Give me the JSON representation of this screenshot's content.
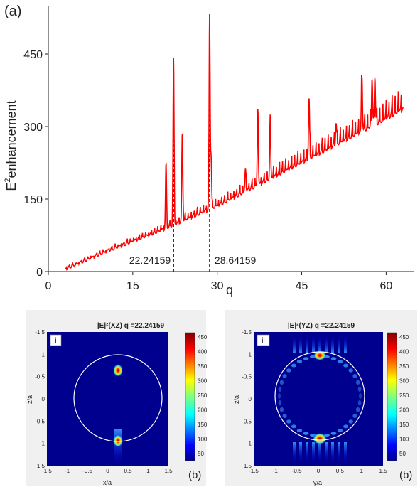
{
  "panel_label": "(a)",
  "chart_data": [
    {
      "type": "line",
      "title": "",
      "xlabel": "q",
      "ylabel_base": "E",
      "ylabel_sup": "2",
      "ylabel_rest": "enhancement",
      "xlim": [
        0,
        65
      ],
      "ylim": [
        0,
        550
      ],
      "x_ticks": [
        0,
        15,
        30,
        45,
        60
      ],
      "y_ticks": [
        0,
        150,
        300,
        450
      ],
      "series": [
        {
          "color": "#ff0000",
          "baseline_x": [
            3,
            10,
            20,
            30,
            40,
            50,
            60,
            63
          ],
          "baseline_y": [
            5,
            40,
            85,
            135,
            195,
            255,
            315,
            335
          ],
          "peaks": [
            {
              "q": 20.9,
              "value": 220
            },
            {
              "q": 22.24159,
              "value": 440
            },
            {
              "q": 23.8,
              "value": 285
            },
            {
              "q": 28.64159,
              "value": 515
            },
            {
              "q": 28.9,
              "value": 240
            },
            {
              "q": 35.0,
              "value": 210
            },
            {
              "q": 37.2,
              "value": 330
            },
            {
              "q": 39.4,
              "value": 310
            },
            {
              "q": 46.3,
              "value": 355
            },
            {
              "q": 51.1,
              "value": 305
            },
            {
              "q": 55.7,
              "value": 405
            },
            {
              "q": 57.5,
              "value": 395
            },
            {
              "q": 58.0,
              "value": 400
            }
          ]
        }
      ],
      "annotations": [
        {
          "q": 22.24159,
          "label": "22.24159"
        },
        {
          "q": 28.64159,
          "label": "28.64159"
        }
      ]
    },
    {
      "type": "heatmap",
      "panel": "i",
      "title": "|E|²(XZ)  q =22.24159",
      "xlabel": "x/a",
      "ylabel": "z/a",
      "xlim": [
        -1.5,
        1.5
      ],
      "ylim": [
        1.5,
        -1.5
      ],
      "x_ticks": [
        "-1.5",
        "-1",
        "-0.5",
        "0",
        "0.5",
        "1",
        "1.5"
      ],
      "y_ticks": [
        "-1.5",
        "-1",
        "-0.5",
        "0",
        "0.5",
        "1",
        "1.5"
      ],
      "colorbar_ticks": [
        50,
        100,
        150,
        200,
        250,
        300,
        350,
        400,
        450
      ],
      "corner_label": "(b)"
    },
    {
      "type": "heatmap",
      "panel": "ii",
      "title": "|E|²(YZ)  q =22.24159",
      "xlabel": "y/a",
      "ylabel": "z/a",
      "xlim": [
        -1.5,
        1.5
      ],
      "ylim": [
        1.5,
        -1.5
      ],
      "x_ticks": [
        "-1.5",
        "-1",
        "-0.5",
        "0",
        "0.5",
        "1",
        "1.5"
      ],
      "y_ticks": [
        "-1.5",
        "-1",
        "-0.5",
        "0",
        "0.5",
        "1",
        "1.5"
      ],
      "colorbar_ticks": [
        50,
        100,
        150,
        200,
        250,
        300,
        350,
        400,
        450
      ],
      "corner_label": "(b)"
    }
  ]
}
